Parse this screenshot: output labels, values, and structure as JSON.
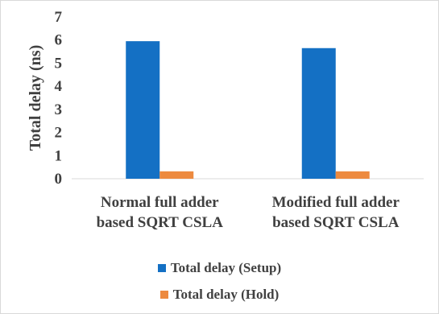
{
  "chart_data": {
    "type": "bar",
    "title": "",
    "xlabel": "",
    "ylabel": "Total delay (ns)",
    "ylim": [
      0,
      7
    ],
    "yticks": [
      0,
      1,
      2,
      3,
      4,
      5,
      6,
      7
    ],
    "grid": false,
    "legend_position": "bottom",
    "categories": [
      [
        "Normal full adder",
        "based SQRT CSLA"
      ],
      [
        "Modified full adder",
        "based SQRT CSLA"
      ]
    ],
    "series": [
      {
        "name": "Total delay (Setup)",
        "color": "#1470c4",
        "values": [
          5.95,
          5.65
        ]
      },
      {
        "name": "Total delay (Hold)",
        "color": "#ed8a3f",
        "values": [
          0.32,
          0.32
        ]
      }
    ]
  }
}
